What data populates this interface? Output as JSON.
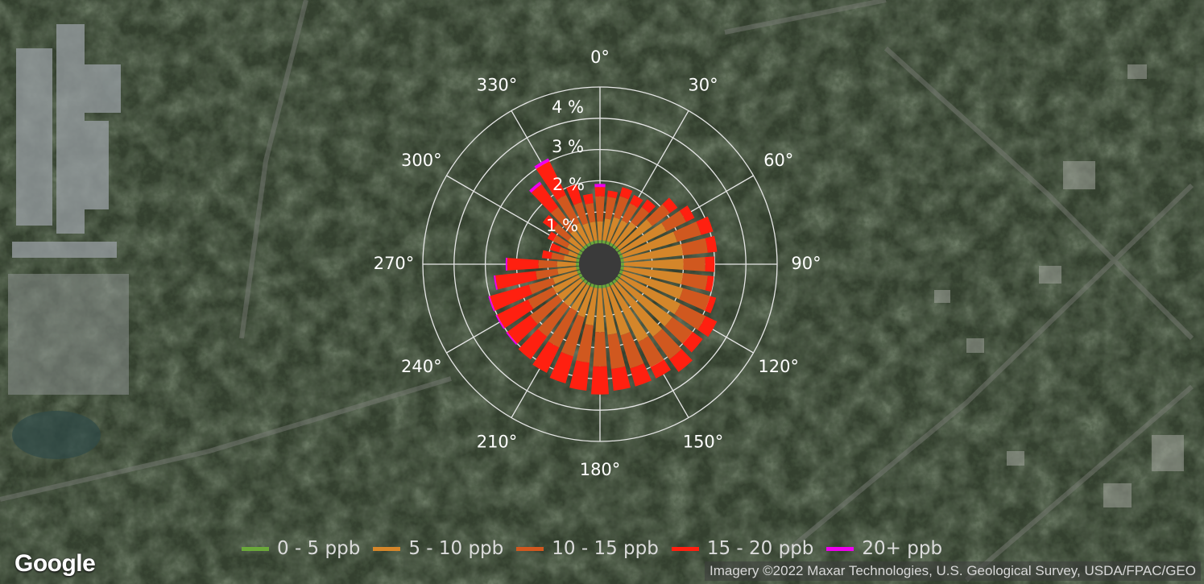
{
  "map": {
    "provider_logo": "Google",
    "attribution": "Imagery ©2022 Maxar Technologies, U.S. Geological Survey, USDA/FPAC/GEO"
  },
  "chart_data": {
    "type": "polar-bar (wind rose)",
    "direction_labels": [
      "0°",
      "30°",
      "60°",
      "90°",
      "120°",
      "150°",
      "180°",
      "210°",
      "240°",
      "270°",
      "300°",
      "330°"
    ],
    "radial_labels": [
      "1 %",
      "2 %",
      "3 %",
      "4 %"
    ],
    "radial_max": 5,
    "bins": [
      {
        "name": "0 - 5 ppb",
        "color": "#6aa83a"
      },
      {
        "name": "5 - 10 ppb",
        "color": "#d4862a"
      },
      {
        "name": "10 - 15 ppb",
        "color": "#d0581f"
      },
      {
        "name": "15 - 20 ppb",
        "color": "#ff2010"
      },
      {
        "name": "20+ ppb",
        "color": "#ee00ee"
      }
    ],
    "sectors": [
      {
        "dir": 0,
        "values": [
          0.1,
          0.6,
          0.8,
          0.3,
          0.1
        ]
      },
      {
        "dir": 10,
        "values": [
          0.1,
          0.7,
          0.7,
          0.2,
          0
        ]
      },
      {
        "dir": 20,
        "values": [
          0.1,
          0.8,
          0.7,
          0.3,
          0
        ]
      },
      {
        "dir": 30,
        "values": [
          0.1,
          0.8,
          0.6,
          0.3,
          0
        ]
      },
      {
        "dir": 40,
        "values": [
          0.1,
          0.9,
          0.6,
          0.3,
          0
        ]
      },
      {
        "dir": 50,
        "values": [
          0.1,
          1.3,
          0.7,
          0.3,
          0
        ]
      },
      {
        "dir": 60,
        "values": [
          0.1,
          1.6,
          0.7,
          0.3,
          0
        ]
      },
      {
        "dir": 70,
        "values": [
          0.1,
          1.8,
          0.8,
          0.4,
          0
        ]
      },
      {
        "dir": 80,
        "values": [
          0.1,
          1.9,
          0.8,
          0.3,
          0
        ]
      },
      {
        "dir": 90,
        "values": [
          0.1,
          1.9,
          0.7,
          0.3,
          0
        ]
      },
      {
        "dir": 100,
        "values": [
          0.1,
          1.9,
          0.8,
          0.2,
          0
        ]
      },
      {
        "dir": 110,
        "values": [
          0.1,
          2.0,
          0.9,
          0.2,
          0
        ]
      },
      {
        "dir": 120,
        "values": [
          0.1,
          2.1,
          0.9,
          0.4,
          0
        ]
      },
      {
        "dir": 130,
        "values": [
          0.1,
          2.1,
          0.8,
          0.4,
          0
        ]
      },
      {
        "dir": 140,
        "values": [
          0.1,
          2.1,
          0.9,
          0.5,
          0
        ]
      },
      {
        "dir": 150,
        "values": [
          0.1,
          2.0,
          0.9,
          0.4,
          0
        ]
      },
      {
        "dir": 160,
        "values": [
          0.1,
          1.6,
          1.1,
          0.6,
          0
        ]
      },
      {
        "dir": 170,
        "values": [
          0.1,
          1.5,
          1.1,
          0.7,
          0
        ]
      },
      {
        "dir": 180,
        "values": [
          0.1,
          1.4,
          1.1,
          0.9,
          0
        ]
      },
      {
        "dir": 190,
        "values": [
          0.1,
          1.2,
          1.2,
          0.9,
          0
        ]
      },
      {
        "dir": 200,
        "values": [
          0.1,
          1.0,
          1.3,
          0.9,
          0
        ]
      },
      {
        "dir": 210,
        "values": [
          0.1,
          0.9,
          1.3,
          0.9,
          0
        ]
      },
      {
        "dir": 220,
        "values": [
          0.1,
          0.9,
          1.2,
          0.9,
          0
        ]
      },
      {
        "dir": 230,
        "values": [
          0.1,
          0.9,
          1.1,
          0.9,
          0.05
        ]
      },
      {
        "dir": 240,
        "values": [
          0.1,
          0.9,
          0.9,
          1.1,
          0.05
        ]
      },
      {
        "dir": 250,
        "values": [
          0.1,
          0.8,
          0.8,
          1.3,
          0.05
        ]
      },
      {
        "dir": 260,
        "values": [
          0.1,
          0.6,
          0.7,
          1.3,
          0.05
        ]
      },
      {
        "dir": 270,
        "values": [
          0.1,
          0.6,
          0.6,
          1.0,
          0.05
        ]
      },
      {
        "dir": 280,
        "values": [
          0.1,
          0.4,
          0.4,
          0.3,
          0
        ]
      },
      {
        "dir": 290,
        "values": [
          0.1,
          0.3,
          0.3,
          0.3,
          0
        ]
      },
      {
        "dir": 300,
        "values": [
          0.1,
          0.4,
          0.5,
          0.2,
          0
        ]
      },
      {
        "dir": 310,
        "values": [
          0.1,
          0.5,
          0.6,
          0.4,
          0
        ]
      },
      {
        "dir": 320,
        "values": [
          0.1,
          0.6,
          0.9,
          0.9,
          0.1
        ]
      },
      {
        "dir": 330,
        "values": [
          0.1,
          0.7,
          1.0,
          1.2,
          0.1
        ]
      },
      {
        "dir": 340,
        "values": [
          0.1,
          0.6,
          0.7,
          0.6,
          0
        ]
      },
      {
        "dir": 350,
        "values": [
          0.1,
          0.6,
          0.6,
          0.3,
          0
        ]
      }
    ]
  }
}
